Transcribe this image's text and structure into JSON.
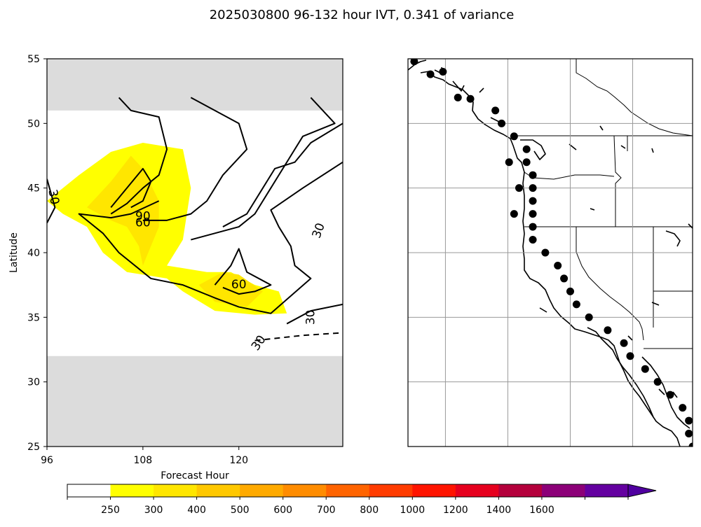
{
  "title": "2025030800 96-132 hour IVT, 0.341 of variance",
  "chart_data": [
    {
      "type": "heatmap",
      "panel": "left",
      "title": "",
      "xlabel": "Forecast Hour",
      "ylabel": "Latitude",
      "xlim": [
        96,
        133
      ],
      "ylim": [
        25,
        55
      ],
      "xticks": [
        "96",
        "108",
        "120"
      ],
      "yticks": [
        "25",
        "30",
        "35",
        "40",
        "45",
        "50",
        "55"
      ],
      "grid": false,
      "masked_lat_bands": [
        [
          25,
          32
        ],
        [
          51,
          55
        ]
      ],
      "fill_colors": {
        "250": "#ffff00",
        "300": "#ffe600"
      },
      "filled_regions": [
        {
          "level": 250,
          "points": [
            [
              96,
              44
            ],
            [
              100,
              46
            ],
            [
              104,
              47.8
            ],
            [
              108,
              48.5
            ],
            [
              113,
              48
            ],
            [
              114,
              45
            ],
            [
              113,
              41
            ],
            [
              111,
              39
            ],
            [
              116,
              38.5
            ],
            [
              119,
              38.5
            ],
            [
              122,
              37.5
            ],
            [
              125,
              37
            ],
            [
              126,
              35.3
            ],
            [
              122,
              35.2
            ],
            [
              117,
              35.5
            ],
            [
              113,
              37
            ],
            [
              111,
              38
            ],
            [
              106,
              38.5
            ],
            [
              103,
              40
            ],
            [
              101,
              42
            ],
            [
              98,
              43
            ]
          ]
        },
        {
          "level": 300,
          "points": [
            [
              101,
              43.5
            ],
            [
              104,
              45.5
            ],
            [
              106.5,
              47.5
            ],
            [
              108,
              46.5
            ],
            [
              110,
              44
            ],
            [
              110,
              42
            ],
            [
              109,
              40.5
            ],
            [
              108,
              39
            ],
            [
              107.5,
              40.5
            ],
            [
              106,
              42
            ],
            [
              104,
              42.5
            ]
          ]
        },
        {
          "level": 300,
          "points": [
            [
              115,
              37.5
            ],
            [
              118,
              38.5
            ],
            [
              120,
              38.3
            ],
            [
              123,
              37
            ],
            [
              121,
              35.8
            ],
            [
              117,
              36.2
            ]
          ]
        }
      ],
      "contours": [
        {
          "level": "30",
          "style": "solid",
          "points": [
            [
              105,
              52
            ],
            [
              106.5,
              51
            ],
            [
              110,
              50.5
            ],
            [
              111,
              48
            ],
            [
              110,
              46
            ],
            [
              108,
              45
            ],
            [
              106,
              43.8
            ],
            [
              104,
              43
            ]
          ]
        },
        {
          "level": "30",
          "style": "solid",
          "points": [
            [
              114,
              52
            ],
            [
              120,
              50
            ],
            [
              121,
              48
            ],
            [
              118,
              46
            ],
            [
              116,
              44
            ],
            [
              114,
              43
            ],
            [
              111,
              42.5
            ],
            [
              108,
              42.5
            ]
          ]
        },
        {
          "level": "30",
          "style": "solid",
          "points": [
            [
              129,
              52
            ],
            [
              132,
              50
            ],
            [
              128,
              49
            ],
            [
              126,
              47
            ],
            [
              124,
              45
            ],
            [
              122,
              43
            ],
            [
              120,
              42
            ],
            [
              114,
              41
            ]
          ]
        },
        {
          "level": "30",
          "style": "solid",
          "points": [
            [
              133,
              50
            ],
            [
              129,
              48.5
            ],
            [
              127,
              47
            ],
            [
              124.5,
              46.5
            ],
            [
              123,
              45
            ],
            [
              121,
              43
            ],
            [
              118,
              42
            ]
          ]
        },
        {
          "level": "30",
          "style": "solid",
          "points": [
            [
              110,
              44
            ],
            [
              106.5,
              43
            ],
            [
              104,
              42.7
            ],
            [
              100,
              43
            ],
            [
              103,
              41.5
            ],
            [
              105,
              40
            ],
            [
              109,
              38
            ],
            [
              113,
              37.5
            ],
            [
              117,
              36.5
            ],
            [
              120,
              35.8
            ],
            [
              124,
              35.3
            ],
            [
              129,
              38
            ],
            [
              127,
              39
            ],
            [
              126.5,
              40.5
            ],
            [
              125,
              42
            ],
            [
              124,
              43.3
            ],
            [
              128,
              45
            ],
            [
              133,
              47
            ]
          ]
        },
        {
          "level": "30",
          "style": "solid",
          "points": [
            [
              126,
              34.5
            ],
            [
              129,
              35.5
            ],
            [
              133,
              36
            ]
          ]
        },
        {
          "level": "30",
          "style": "solid",
          "points": [
            [
              96,
              42.3
            ],
            [
              97,
              43.5
            ],
            [
              96,
              45.7
            ]
          ]
        },
        {
          "level": "30",
          "style": "dashed",
          "points": [
            [
              122,
              33.2
            ],
            [
              128,
              33.6
            ],
            [
              133,
              33.8
            ]
          ]
        },
        {
          "level": "60",
          "style": "solid",
          "points": [
            [
              104,
              43.5
            ],
            [
              106,
              45
            ],
            [
              108,
              46.5
            ],
            [
              109,
              45.5
            ],
            [
              108,
              44
            ],
            [
              106.5,
              43.5
            ]
          ]
        },
        {
          "level": "60",
          "style": "solid",
          "points": [
            [
              117,
              37.5
            ],
            [
              119,
              39
            ],
            [
              120,
              40.3
            ],
            [
              121,
              38.5
            ],
            [
              124,
              37.5
            ],
            [
              122,
              37
            ],
            [
              120,
              36.8
            ],
            [
              118,
              37.3
            ]
          ]
        }
      ],
      "labels": [
        {
          "text": "30",
          "lon": 96.8,
          "lat": 44.3,
          "rotation": 80
        },
        {
          "text": "90",
          "lon": 108,
          "lat": 42.8,
          "rotation": 0
        },
        {
          "text": "60",
          "lon": 108,
          "lat": 42.3,
          "rotation": 0
        },
        {
          "text": "60",
          "lon": 120,
          "lat": 37.5,
          "rotation": 0
        },
        {
          "text": "30",
          "lon": 130,
          "lat": 41.7,
          "rotation": -70
        },
        {
          "text": "30",
          "lon": 129,
          "lat": 35.0,
          "rotation": -90
        },
        {
          "text": "30",
          "lon": 122.5,
          "lat": 33,
          "rotation": -55
        }
      ]
    },
    {
      "type": "scatter",
      "panel": "right-map",
      "title": "",
      "xlabel": "",
      "ylabel": "",
      "extent_lon": [
        -132,
        -109.2
      ],
      "extent_lat": [
        25,
        55
      ],
      "grid": true,
      "grid_lons": [
        -129,
        -124,
        -119,
        -114
      ],
      "grid_lats": [
        30,
        35,
        40,
        45,
        50
      ],
      "points_lat_lon": [
        [
          54,
          -129.2
        ],
        [
          52,
          -128
        ],
        [
          51,
          -125
        ],
        [
          50,
          -124.5
        ],
        [
          49,
          -123.5
        ],
        [
          48,
          -122.5
        ],
        [
          47,
          -122.5
        ],
        [
          46,
          -122
        ],
        [
          45,
          -122
        ],
        [
          44,
          -122
        ],
        [
          43,
          -122
        ],
        [
          42,
          -122
        ],
        [
          41,
          -122
        ],
        [
          40,
          -121
        ],
        [
          39,
          -120
        ],
        [
          38,
          -119.5
        ],
        [
          37,
          -119
        ],
        [
          36,
          -118.5
        ],
        [
          35,
          -117.5
        ],
        [
          34,
          -116
        ],
        [
          33,
          -114.7
        ],
        [
          32,
          -114.2
        ],
        [
          31,
          -113
        ],
        [
          30,
          -112
        ],
        [
          29,
          -111
        ],
        [
          28,
          -110
        ],
        [
          27,
          -109.5
        ],
        [
          26,
          -109.5
        ],
        [
          25,
          -109.2
        ],
        [
          43,
          -123.5
        ],
        [
          45,
          -123.1
        ],
        [
          47,
          -123.9
        ],
        [
          51.9,
          -127
        ],
        [
          53.8,
          -130.2
        ],
        [
          54.8,
          -131.5
        ]
      ]
    }
  ],
  "colorbar": {
    "ticks": [
      "250",
      "300",
      "400",
      "500",
      "600",
      "700",
      "800",
      "1000",
      "1200",
      "1400",
      "1600"
    ],
    "colors": [
      "#ffffff",
      "#ffff00",
      "#ffe600",
      "#ffc800",
      "#ffaa00",
      "#ff8c00",
      "#ff6400",
      "#ff3c00",
      "#ff1400",
      "#e6001e",
      "#b4003c",
      "#8c0078",
      "#6400a0",
      "#5000a0"
    ],
    "extend": "max"
  }
}
